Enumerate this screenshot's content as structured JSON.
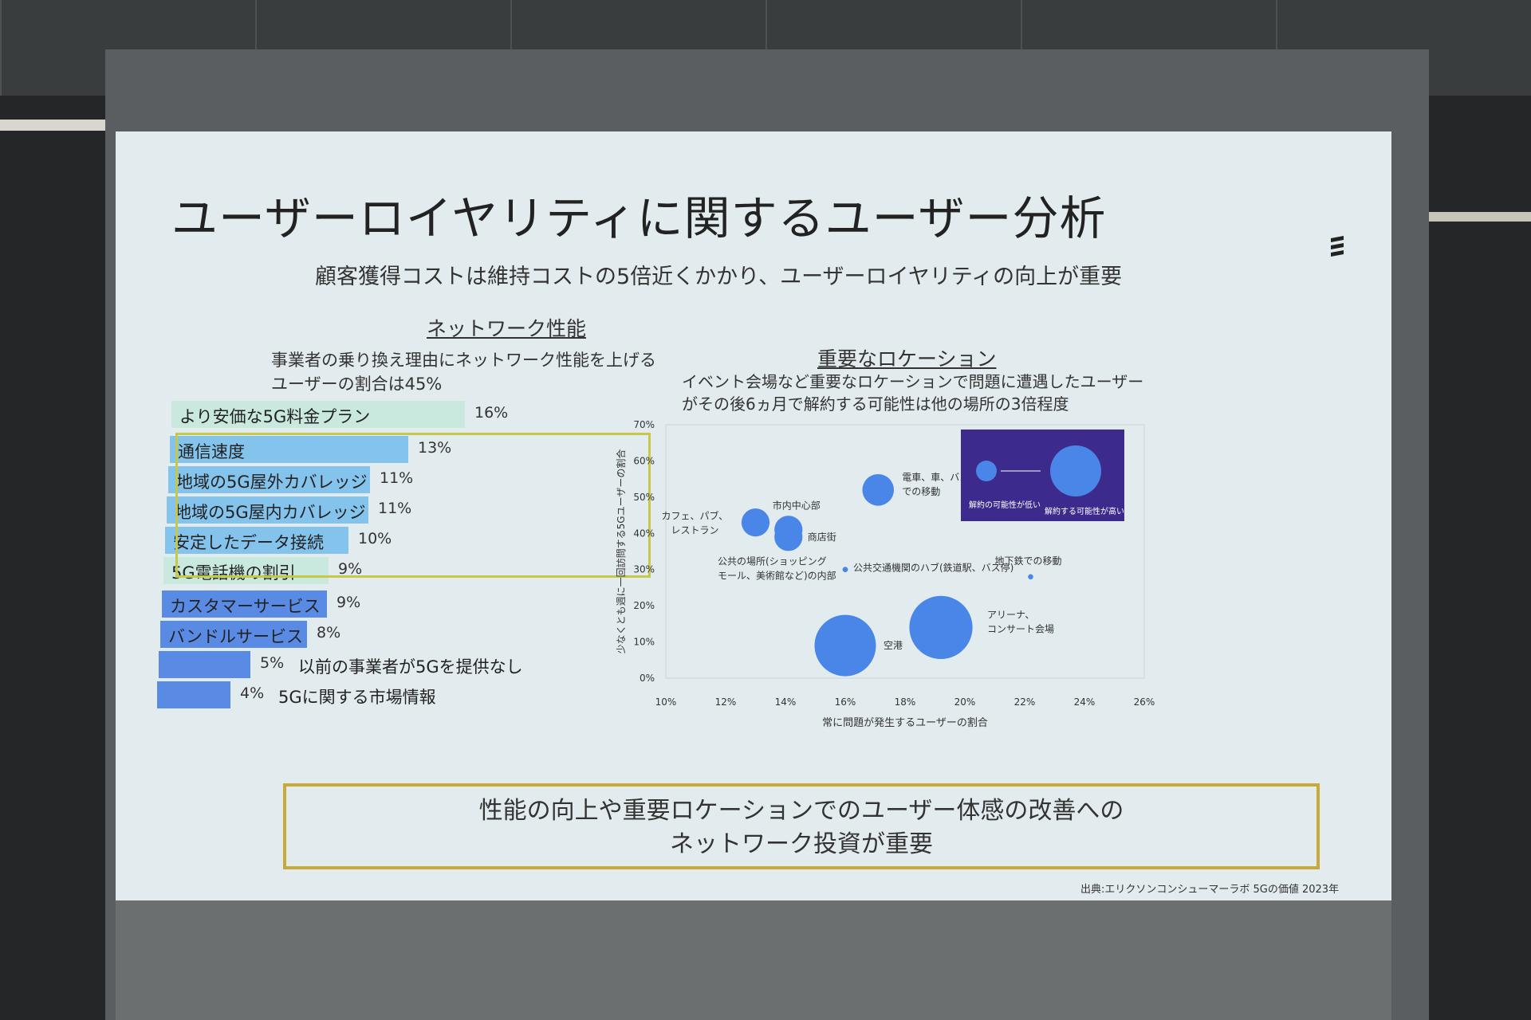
{
  "slide": {
    "title": "ユーザーロイヤリティに関するユーザー分析",
    "subtitle": "顧客獲得コストは維持コストの5倍近くかかり、ユーザーロイヤリティの向上が重要",
    "left_heading": "ネットワーク性能",
    "left_desc_line1": "事業者の乗り換え理由にネットワーク性能を上げる",
    "left_desc_line2": "ユーザーの割合は45%",
    "right_heading": "重要なロケーション",
    "right_desc_line1": "イベント会場など重要なロケーションで問題に遭遇したユーザー",
    "right_desc_line2": "がその後6ヵ月で解約する可能性は他の場所の3倍程度",
    "conclusion_line1": "性能の向上や重要ロケーションでのユーザー体感の改善への",
    "conclusion_line2": "ネットワーク投資が重要",
    "source": "出典:エリクソンコンシューマーラボ 5Gの価値 2023年"
  },
  "colors": {
    "mint": "#c9e9df",
    "light_blue": "#84c3ec",
    "blue": "#5a8be4",
    "bubble": "#4a86e8",
    "legend_bg": "#3c2a8c"
  },
  "chart_data": [
    {
      "type": "bar",
      "title": "",
      "categories": [
        "より安価な5G料金プラン",
        "通信速度",
        "地域の5G屋外カバレッジ",
        "地域の5G屋内カバレッジ",
        "安定したデータ接続",
        "5G電話機の割引",
        "カスタマーサービス",
        "バンドルサービス",
        "以前の事業者が5Gを提供なし",
        "5Gに関する市場情報"
      ],
      "values": [
        16,
        13,
        11,
        11,
        10,
        9,
        9,
        8,
        5,
        4
      ],
      "value_labels": [
        "16%",
        "13%",
        "11%",
        "11%",
        "10%",
        "9%",
        "9%",
        "8%",
        "5%",
        "4%"
      ],
      "bar_colors": [
        "mint",
        "light_blue",
        "light_blue",
        "light_blue",
        "light_blue",
        "mint",
        "blue",
        "blue",
        "blue",
        "blue"
      ],
      "highlighted": [
        1,
        2,
        3,
        4
      ],
      "orientation": "horizontal"
    },
    {
      "type": "scatter",
      "xlabel": "常に問題が発生するユーザーの割合",
      "ylabel": "少なくとも週に一回訪問する5Gユーザーの割合",
      "xlim": [
        10,
        26
      ],
      "ylim": [
        0,
        70
      ],
      "x_ticks": [
        "10%",
        "12%",
        "14%",
        "16%",
        "18%",
        "20%",
        "22%",
        "24%",
        "26%"
      ],
      "y_ticks": [
        "0%",
        "10%",
        "20%",
        "30%",
        "40%",
        "50%",
        "60%",
        "70%"
      ],
      "points": [
        {
          "label": "カフェ、パブ、レストラン",
          "x": 13.0,
          "y": 43,
          "size": 1.6
        },
        {
          "label": "市内中心部",
          "x": 14.1,
          "y": 41,
          "size": 1.6
        },
        {
          "label": "商店街",
          "x": 14.1,
          "y": 39,
          "size": 1.6
        },
        {
          "label": "電車、車、バスでの移動",
          "x": 17.1,
          "y": 52,
          "size": 1.8
        },
        {
          "label": "公共の場所(ショッピングモール、美術館など)の内部",
          "x": 16.0,
          "y": 30,
          "size": 0.3
        },
        {
          "label": "公共交通機関のハブ(鉄道駅、バス停)",
          "x": 16.0,
          "y": 30,
          "size": 0.3
        },
        {
          "label": "地下鉄での移動",
          "x": 22.2,
          "y": 28,
          "size": 0.3
        },
        {
          "label": "空港",
          "x": 16.0,
          "y": 9,
          "size": 3.5
        },
        {
          "label": "アリーナ、コンサート会場",
          "x": 19.2,
          "y": 14,
          "size": 3.6
        }
      ],
      "legend": {
        "low": "解約の可能性が低い",
        "high": "解約する可能性が高い"
      }
    }
  ]
}
